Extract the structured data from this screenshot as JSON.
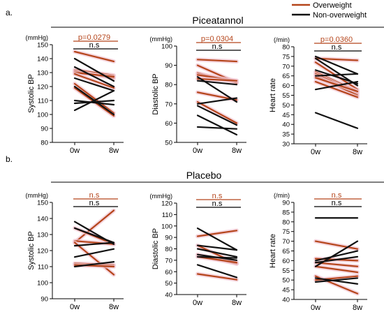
{
  "figure": {
    "legend": [
      {
        "label": "Overweight",
        "color": "#b5451b"
      },
      {
        "label": "Non-overweight",
        "color": "#111111"
      }
    ],
    "panels": [
      {
        "letter": "a.",
        "title": "Piceatannol"
      },
      {
        "letter": "b.",
        "title": "Placebo"
      }
    ]
  },
  "chart_data": [
    {
      "type": "line",
      "group": "Piceatannol",
      "unit": "(mmHg)",
      "ylabel": "Systolic BP",
      "x": [
        "0w",
        "8w"
      ],
      "ylim": [
        80,
        150
      ],
      "ticks": [
        80,
        90,
        100,
        110,
        120,
        130,
        140,
        150
      ],
      "stat_overweight": "p=0.0279",
      "stat_nonoverweight": "n.s",
      "series": [
        {
          "group": "overweight",
          "values": [
            145,
            138
          ]
        },
        {
          "group": "overweight",
          "values": [
            132,
            128
          ]
        },
        {
          "group": "overweight",
          "values": [
            131,
            126
          ]
        },
        {
          "group": "overweight",
          "values": [
            130,
            127
          ]
        },
        {
          "group": "overweight",
          "values": [
            129,
            119
          ]
        },
        {
          "group": "overweight",
          "values": [
            122,
            101
          ]
        },
        {
          "group": "overweight",
          "values": [
            119,
            99
          ]
        },
        {
          "group": "non-overweight",
          "values": [
            140,
            124
          ]
        },
        {
          "group": "non-overweight",
          "values": [
            134,
            120
          ]
        },
        {
          "group": "non-overweight",
          "values": [
            126,
            117
          ]
        },
        {
          "group": "non-overweight",
          "values": [
            120,
            100
          ]
        },
        {
          "group": "non-overweight",
          "values": [
            110,
            107
          ]
        },
        {
          "group": "non-overweight",
          "values": [
            108,
            110
          ]
        },
        {
          "group": "non-overweight",
          "values": [
            103,
            117
          ]
        }
      ]
    },
    {
      "type": "line",
      "group": "Piceatannol",
      "unit": "(mmHg)",
      "ylabel": "Diastolic BP",
      "x": [
        "0w",
        "8w"
      ],
      "ylim": [
        50,
        100
      ],
      "ticks": [
        50,
        60,
        70,
        80,
        90,
        100
      ],
      "stat_overweight": "p=0.0304",
      "stat_nonoverweight": "n.s",
      "series": [
        {
          "group": "overweight",
          "values": [
            93,
            92
          ]
        },
        {
          "group": "overweight",
          "values": [
            90,
            81
          ]
        },
        {
          "group": "overweight",
          "values": [
            86,
            81
          ]
        },
        {
          "group": "overweight",
          "values": [
            85,
            82
          ]
        },
        {
          "group": "overweight",
          "values": [
            83,
            82
          ]
        },
        {
          "group": "overweight",
          "values": [
            76,
            72
          ]
        },
        {
          "group": "overweight",
          "values": [
            71,
            60
          ]
        },
        {
          "group": "non-overweight",
          "values": [
            84,
            71
          ]
        },
        {
          "group": "non-overweight",
          "values": [
            82,
            80
          ]
        },
        {
          "group": "non-overweight",
          "values": [
            70,
            73
          ]
        },
        {
          "group": "non-overweight",
          "values": [
            69,
            59
          ]
        },
        {
          "group": "non-overweight",
          "values": [
            64,
            54
          ]
        },
        {
          "group": "non-overweight",
          "values": [
            58,
            57
          ]
        }
      ]
    },
    {
      "type": "line",
      "group": "Piceatannol",
      "unit": "(/min)",
      "ylabel": "Heart rate",
      "x": [
        "0w",
        "8w"
      ],
      "ylim": [
        30,
        80
      ],
      "ticks": [
        30,
        35,
        40,
        45,
        50,
        55,
        60,
        65,
        70,
        75,
        80
      ],
      "stat_overweight": "p=0.0360",
      "stat_nonoverweight": "n.s",
      "series": [
        {
          "group": "overweight",
          "values": [
            74,
            73
          ]
        },
        {
          "group": "overweight",
          "values": [
            72,
            58
          ]
        },
        {
          "group": "overweight",
          "values": [
            67,
            57
          ]
        },
        {
          "group": "overweight",
          "values": [
            66,
            56
          ]
        },
        {
          "group": "overweight",
          "values": [
            65,
            55
          ]
        },
        {
          "group": "overweight",
          "values": [
            64,
            57
          ]
        },
        {
          "group": "overweight",
          "values": [
            62,
            54
          ]
        },
        {
          "group": "non-overweight",
          "values": [
            75,
            66
          ]
        },
        {
          "group": "non-overweight",
          "values": [
            74,
            60
          ]
        },
        {
          "group": "non-overweight",
          "values": [
            68,
            61
          ]
        },
        {
          "group": "non-overweight",
          "values": [
            65,
            66
          ]
        },
        {
          "group": "non-overweight",
          "values": [
            58,
            62
          ]
        },
        {
          "group": "non-overweight",
          "values": [
            46,
            38
          ]
        }
      ]
    },
    {
      "type": "line",
      "group": "Placebo",
      "unit": "(mmHg)",
      "ylabel": "Systolic BP",
      "x": [
        "0w",
        "8w"
      ],
      "ylim": [
        90,
        150
      ],
      "ticks": [
        90,
        100,
        110,
        120,
        130,
        140,
        150
      ],
      "stat_overweight": "n.s",
      "stat_nonoverweight": "n.s",
      "series": [
        {
          "group": "overweight",
          "values": [
            125,
            145
          ]
        },
        {
          "group": "overweight",
          "values": [
            134,
            124
          ]
        },
        {
          "group": "overweight",
          "values": [
            126,
            124
          ]
        },
        {
          "group": "overweight",
          "values": [
            125,
            105
          ]
        },
        {
          "group": "overweight",
          "values": [
            112,
            111
          ]
        },
        {
          "group": "overweight",
          "values": [
            111,
            110
          ]
        },
        {
          "group": "non-overweight",
          "values": [
            138,
            124
          ]
        },
        {
          "group": "non-overweight",
          "values": [
            134,
            125
          ]
        },
        {
          "group": "non-overweight",
          "values": [
            123,
            125
          ]
        },
        {
          "group": "non-overweight",
          "values": [
            116,
            121
          ]
        },
        {
          "group": "non-overweight",
          "values": [
            110,
            113
          ]
        }
      ]
    },
    {
      "type": "line",
      "group": "Placebo",
      "unit": "(mmHg)",
      "ylabel": "Diastolic BP",
      "x": [
        "0w",
        "8w"
      ],
      "ylim": [
        40,
        120
      ],
      "ticks": [
        40,
        50,
        60,
        70,
        80,
        90,
        100,
        110,
        120
      ],
      "stat_overweight": "n.s",
      "stat_nonoverweight": "n.s",
      "series": [
        {
          "group": "overweight",
          "values": [
            91,
            96
          ]
        },
        {
          "group": "overweight",
          "values": [
            83,
            67
          ]
        },
        {
          "group": "overweight",
          "values": [
            75,
            67
          ]
        },
        {
          "group": "overweight",
          "values": [
            73,
            68
          ]
        },
        {
          "group": "overweight",
          "values": [
            58,
            53
          ]
        },
        {
          "group": "non-overweight",
          "values": [
            98,
            79
          ]
        },
        {
          "group": "non-overweight",
          "values": [
            83,
            79
          ]
        },
        {
          "group": "non-overweight",
          "values": [
            80,
            73
          ]
        },
        {
          "group": "non-overweight",
          "values": [
            75,
            70
          ]
        },
        {
          "group": "non-overweight",
          "values": [
            73,
            72
          ]
        },
        {
          "group": "non-overweight",
          "values": [
            66,
            55
          ]
        }
      ]
    },
    {
      "type": "line",
      "group": "Placebo",
      "unit": "(/min)",
      "ylabel": "Heart rate",
      "x": [
        "0w",
        "8w"
      ],
      "ylim": [
        40,
        90
      ],
      "ticks": [
        40,
        45,
        50,
        55,
        60,
        65,
        70,
        75,
        80,
        85,
        90
      ],
      "stat_overweight": "n.s",
      "stat_nonoverweight": "n.s",
      "series": [
        {
          "group": "overweight",
          "values": [
            70,
            66
          ]
        },
        {
          "group": "overweight",
          "values": [
            61,
            60
          ]
        },
        {
          "group": "overweight",
          "values": [
            59,
            57
          ]
        },
        {
          "group": "overweight",
          "values": [
            57,
            54
          ]
        },
        {
          "group": "overweight",
          "values": [
            52,
            43
          ]
        },
        {
          "group": "overweight",
          "values": [
            50,
            52
          ]
        },
        {
          "group": "non-overweight",
          "values": [
            82,
            82
          ]
        },
        {
          "group": "non-overweight",
          "values": [
            60,
            65
          ]
        },
        {
          "group": "non-overweight",
          "values": [
            59,
            62
          ]
        },
        {
          "group": "non-overweight",
          "values": [
            57,
            70
          ]
        },
        {
          "group": "non-overweight",
          "values": [
            51,
            48
          ]
        },
        {
          "group": "non-overweight",
          "values": [
            49,
            51
          ]
        }
      ]
    }
  ]
}
